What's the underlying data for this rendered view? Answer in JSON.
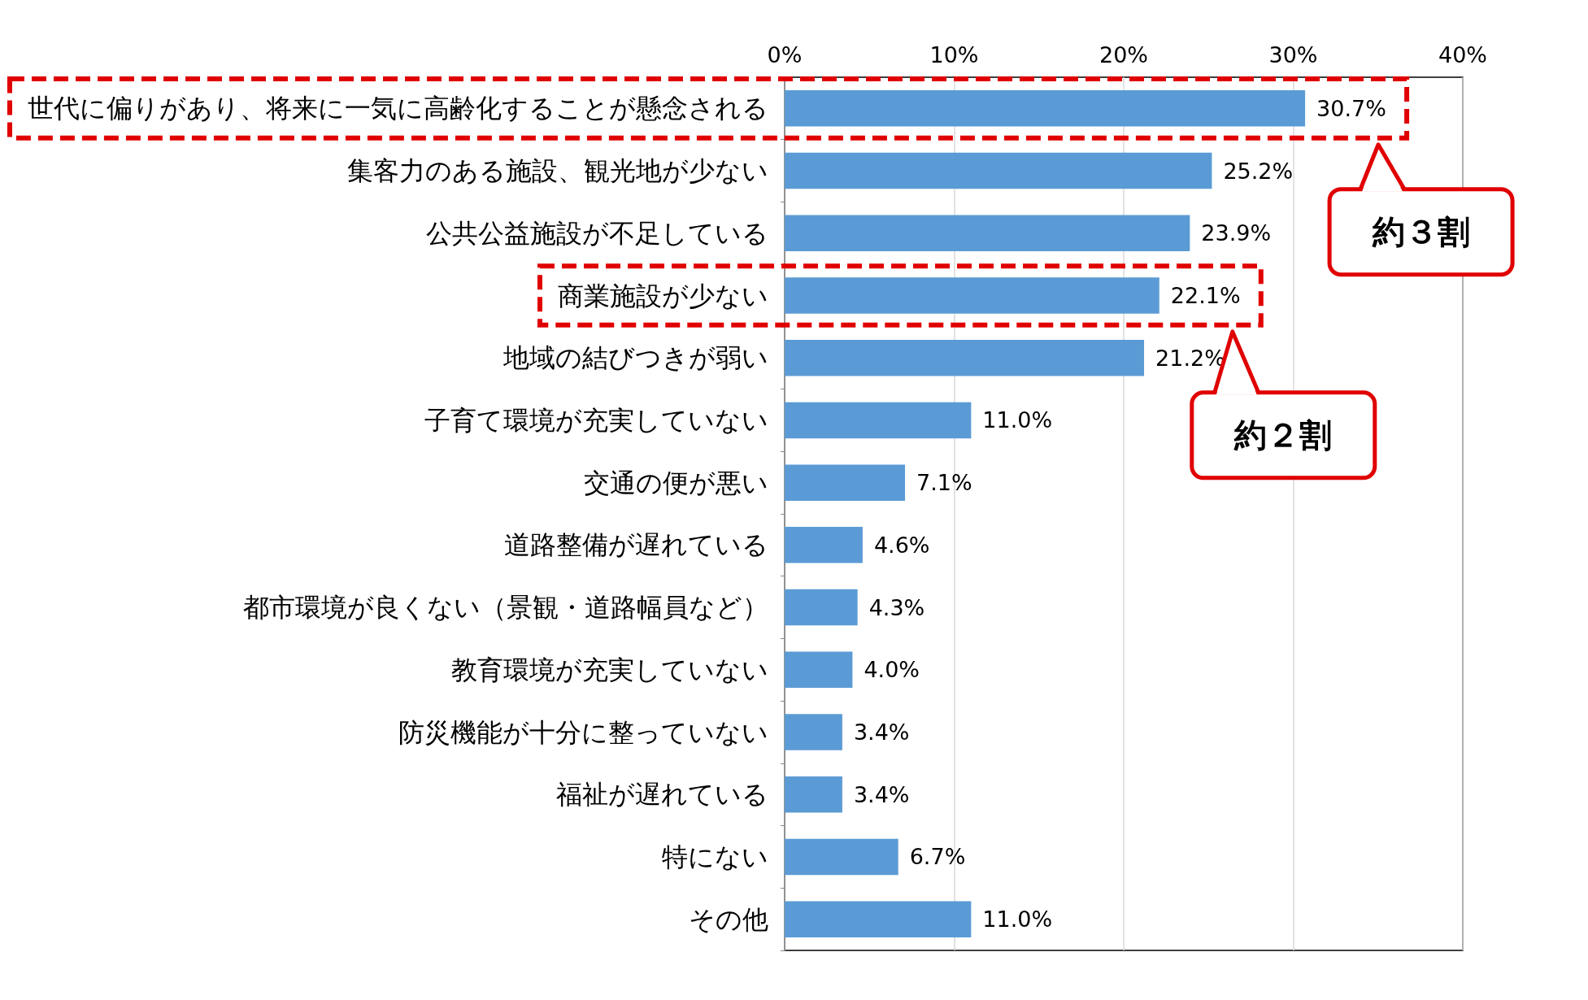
{
  "chart_data": {
    "type": "bar",
    "orientation": "horizontal",
    "categories": [
      "世代に偏りがあり、将来に一気に高齢化することが懸念される",
      "集客力のある施設、観光地が少ない",
      "公共公益施設が不足している",
      "商業施設が少ない",
      "地域の結びつきが弱い",
      "子育て環境が充実していない",
      "交通の便が悪い",
      "道路整備が遅れている",
      "都市環境が良くない（景観・道路幅員など）",
      "教育環境が充実していない",
      "防災機能が十分に整っていない",
      "福祉が遅れている",
      "特にない",
      "その他"
    ],
    "values": [
      30.7,
      25.2,
      23.9,
      22.1,
      21.2,
      11.0,
      7.1,
      4.6,
      4.3,
      4.0,
      3.4,
      3.4,
      6.7,
      11.0
    ],
    "value_labels": [
      "30.7%",
      "25.2%",
      "23.9%",
      "22.1%",
      "21.2%",
      "11.0%",
      "7.1%",
      "4.6%",
      "4.3%",
      "4.0%",
      "3.4%",
      "3.4%",
      "6.7%",
      "11.0%"
    ],
    "color": "#5b9bd5",
    "xlim": [
      0,
      40
    ],
    "xticks": [
      {
        "value": 0,
        "label": "0%"
      },
      {
        "value": 10,
        "label": "10%"
      },
      {
        "value": 20,
        "label": "20%"
      },
      {
        "value": 30,
        "label": "30%"
      },
      {
        "value": 40,
        "label": "40%"
      }
    ],
    "grid": "x",
    "annotations": [
      "約３割",
      "約２割"
    ]
  }
}
